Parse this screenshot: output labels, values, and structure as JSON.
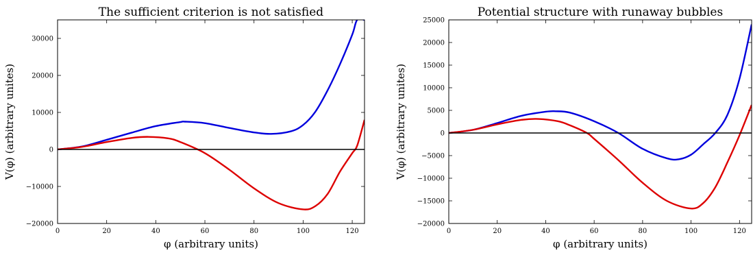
{
  "chart_data": [
    {
      "type": "line",
      "title": "The sufficient criterion is not satisfied",
      "xlabel": "φ (arbitrary units)",
      "ylabel": "V(φ) (arbitrary unites)",
      "xlim": [
        0,
        125
      ],
      "ylim": [
        -20000,
        35000
      ],
      "xticks": [
        0,
        20,
        40,
        60,
        80,
        100,
        120
      ],
      "yticks": [
        -20000,
        -10000,
        0,
        10000,
        20000,
        30000
      ],
      "ytick_labels": [
        "−20000",
        "−10000",
        "0",
        "10000",
        "20000",
        "30000"
      ],
      "grid": false,
      "series": [
        {
          "color": "#0000dd",
          "x": [
            0,
            10,
            20,
            30,
            40,
            50,
            52,
            60,
            70,
            80,
            87,
            95,
            100,
            105,
            110,
            115,
            120,
            122,
            125
          ],
          "y": [
            0,
            800,
            2600,
            4500,
            6300,
            7400,
            7500,
            7100,
            5800,
            4600,
            4200,
            4900,
            6600,
            10200,
            16000,
            23000,
            31000,
            35000,
            35000
          ]
        },
        {
          "color": "#dd0000",
          "x": [
            0,
            10,
            20,
            30,
            37,
            45,
            50,
            60,
            70,
            80,
            90,
            100,
            105,
            110,
            115,
            120,
            122,
            125
          ],
          "y": [
            0,
            700,
            2000,
            3100,
            3400,
            3000,
            2000,
            -1000,
            -5500,
            -10500,
            -14500,
            -16200,
            -15300,
            -12000,
            -6000,
            -1000,
            1000,
            8000
          ]
        },
        {
          "color": "#000000",
          "x": [
            0,
            125
          ],
          "y": [
            0,
            0
          ]
        }
      ]
    },
    {
      "type": "line",
      "title": "Potential structure with runaway bubbles",
      "xlabel": "φ (arbitrary units)",
      "ylabel": "V(φ) (arbitrary unites)",
      "xlim": [
        0,
        125
      ],
      "ylim": [
        -20000,
        25000
      ],
      "xticks": [
        0,
        20,
        40,
        60,
        80,
        100,
        120
      ],
      "yticks": [
        -20000,
        -15000,
        -10000,
        -5000,
        0,
        5000,
        10000,
        15000,
        20000,
        25000
      ],
      "ytick_labels": [
        "−20000",
        "−15000",
        "−10000",
        "−5000",
        "0",
        "5000",
        "10000",
        "15000",
        "20000",
        "25000"
      ],
      "grid": false,
      "series": [
        {
          "color": "#0000dd",
          "x": [
            0,
            10,
            20,
            30,
            40,
            44,
            50,
            60,
            70,
            80,
            90,
            95,
            100,
            105,
            110,
            115,
            120,
            125
          ],
          "y": [
            0,
            700,
            2200,
            3800,
            4700,
            4800,
            4500,
            2600,
            0,
            -3500,
            -5600,
            -5800,
            -4800,
            -2500,
            0,
            4000,
            12000,
            24000
          ]
        },
        {
          "color": "#dd0000",
          "x": [
            0,
            10,
            20,
            30,
            37,
            45,
            50,
            57,
            60,
            70,
            80,
            90,
            100,
            105,
            110,
            115,
            120,
            125
          ],
          "y": [
            0,
            700,
            1900,
            2900,
            3100,
            2600,
            1700,
            0,
            -1300,
            -6000,
            -11000,
            -15000,
            -16700,
            -15500,
            -12000,
            -6500,
            -500,
            6200
          ]
        },
        {
          "color": "#000000",
          "x": [
            0,
            125
          ],
          "y": [
            0,
            0
          ]
        }
      ]
    }
  ]
}
